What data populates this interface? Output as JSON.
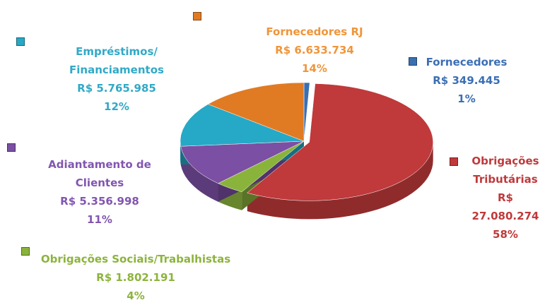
{
  "chart_data": {
    "type": "pie3d",
    "categories": [
      "Fornecedores",
      "Obrigações Tributárias",
      "Obrigações Sociais/Trabalhistas",
      "Adiantamento de Clientes",
      "Empréstimos/ Financiamentos",
      "Fornecedores RJ"
    ],
    "values": [
      349445,
      27080274,
      1802191,
      5356998,
      5765985,
      6633734
    ],
    "value_labels": [
      "R$ 349.445",
      "R$ 27.080.274",
      "R$ 1.802.191",
      "R$ 5.356.998",
      "R$ 5.765.985",
      "R$ 6.633.734"
    ],
    "percentages": [
      1,
      58,
      4,
      11,
      12,
      14
    ],
    "percentage_labels": [
      "1%",
      "58%",
      "4%",
      "11%",
      "12%",
      "14%"
    ],
    "colors": [
      "#3a6fb0",
      "#c0393b",
      "#8ab33c",
      "#7b4fa3",
      "#26a9c6",
      "#e07b24"
    ],
    "label_colors": [
      "#3b6fb5",
      "#c0393b",
      "#8cb43c",
      "#8256b0",
      "#31a9c7",
      "#f0953a"
    ]
  }
}
